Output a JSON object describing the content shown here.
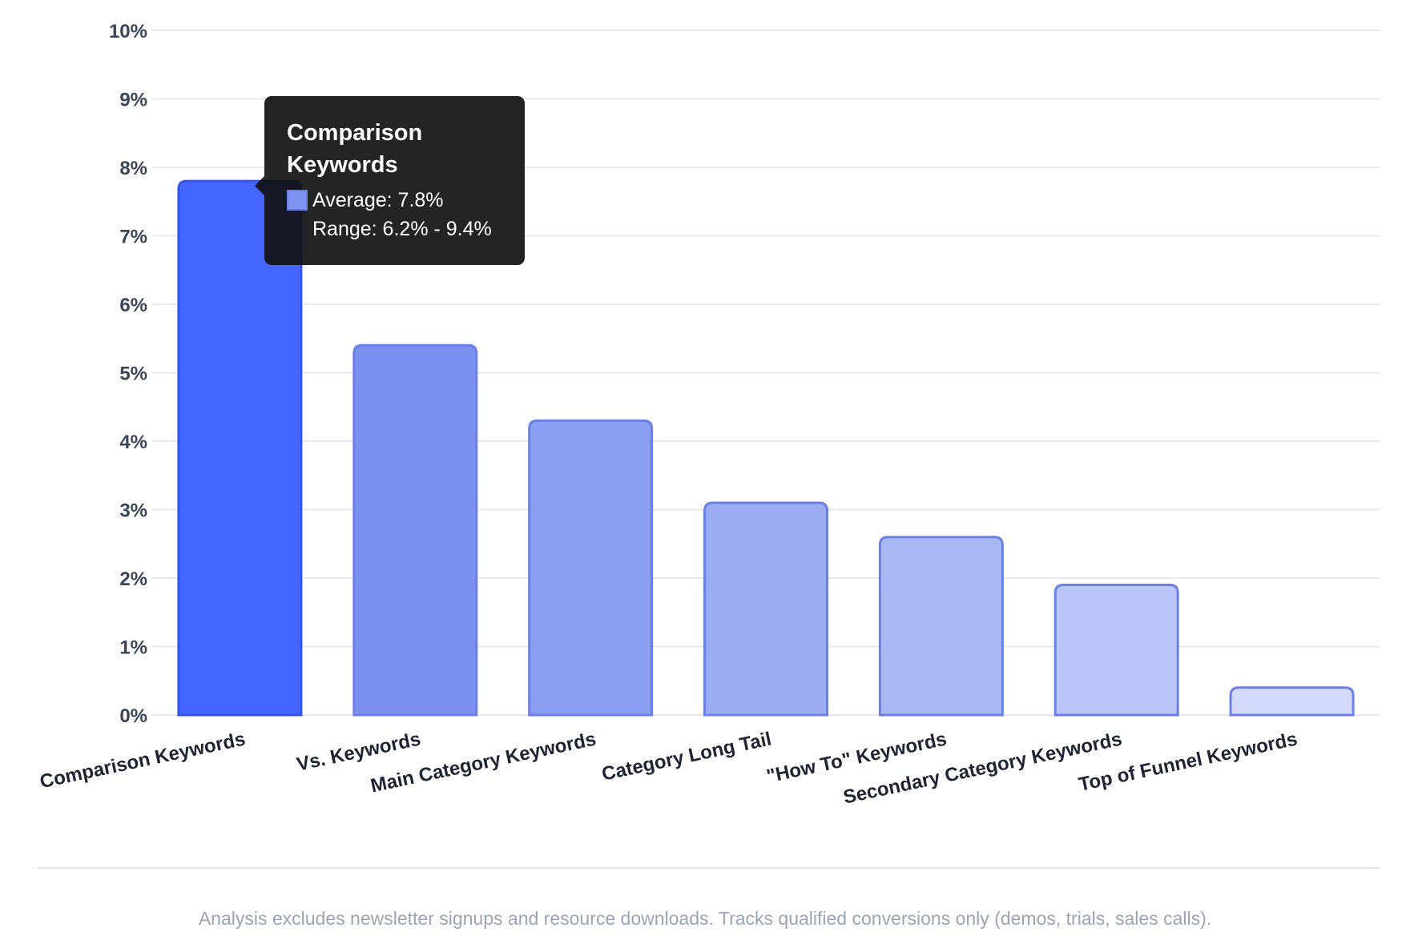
{
  "chart_data": {
    "type": "bar",
    "categories": [
      "Comparison Keywords",
      "Vs. Keywords",
      "Main Category Keywords",
      "Category Long Tail",
      "\"How To\" Keywords",
      "Secondary Category Keywords",
      "Top of Funnel Keywords"
    ],
    "values": [
      7.8,
      5.4,
      4.3,
      3.1,
      2.6,
      1.9,
      0.4
    ],
    "ylim": [
      0,
      10
    ],
    "yticks": [
      "0%",
      "1%",
      "2%",
      "3%",
      "4%",
      "5%",
      "6%",
      "7%",
      "8%",
      "9%",
      "10%"
    ],
    "grid": true,
    "highlighted_index": 0,
    "colors": {
      "highlight_fill": "#4466ff",
      "highlight_stroke": "#3355ee",
      "bar_stroke": "#6a80e8",
      "bar_fills": [
        "#4466ff",
        "#7a8fee",
        "#8b9ef1",
        "#9bacf2",
        "#aab8f4",
        "#bac6f7",
        "#d3daf9"
      ]
    }
  },
  "tooltip": {
    "title": "Comparison Keywords",
    "average": "Average: 7.8%",
    "range": "Range: 6.2% - 9.4%"
  },
  "footnote": "Analysis excludes newsletter signups and resource downloads. Tracks qualified conversions only (demos, trials, sales calls)."
}
